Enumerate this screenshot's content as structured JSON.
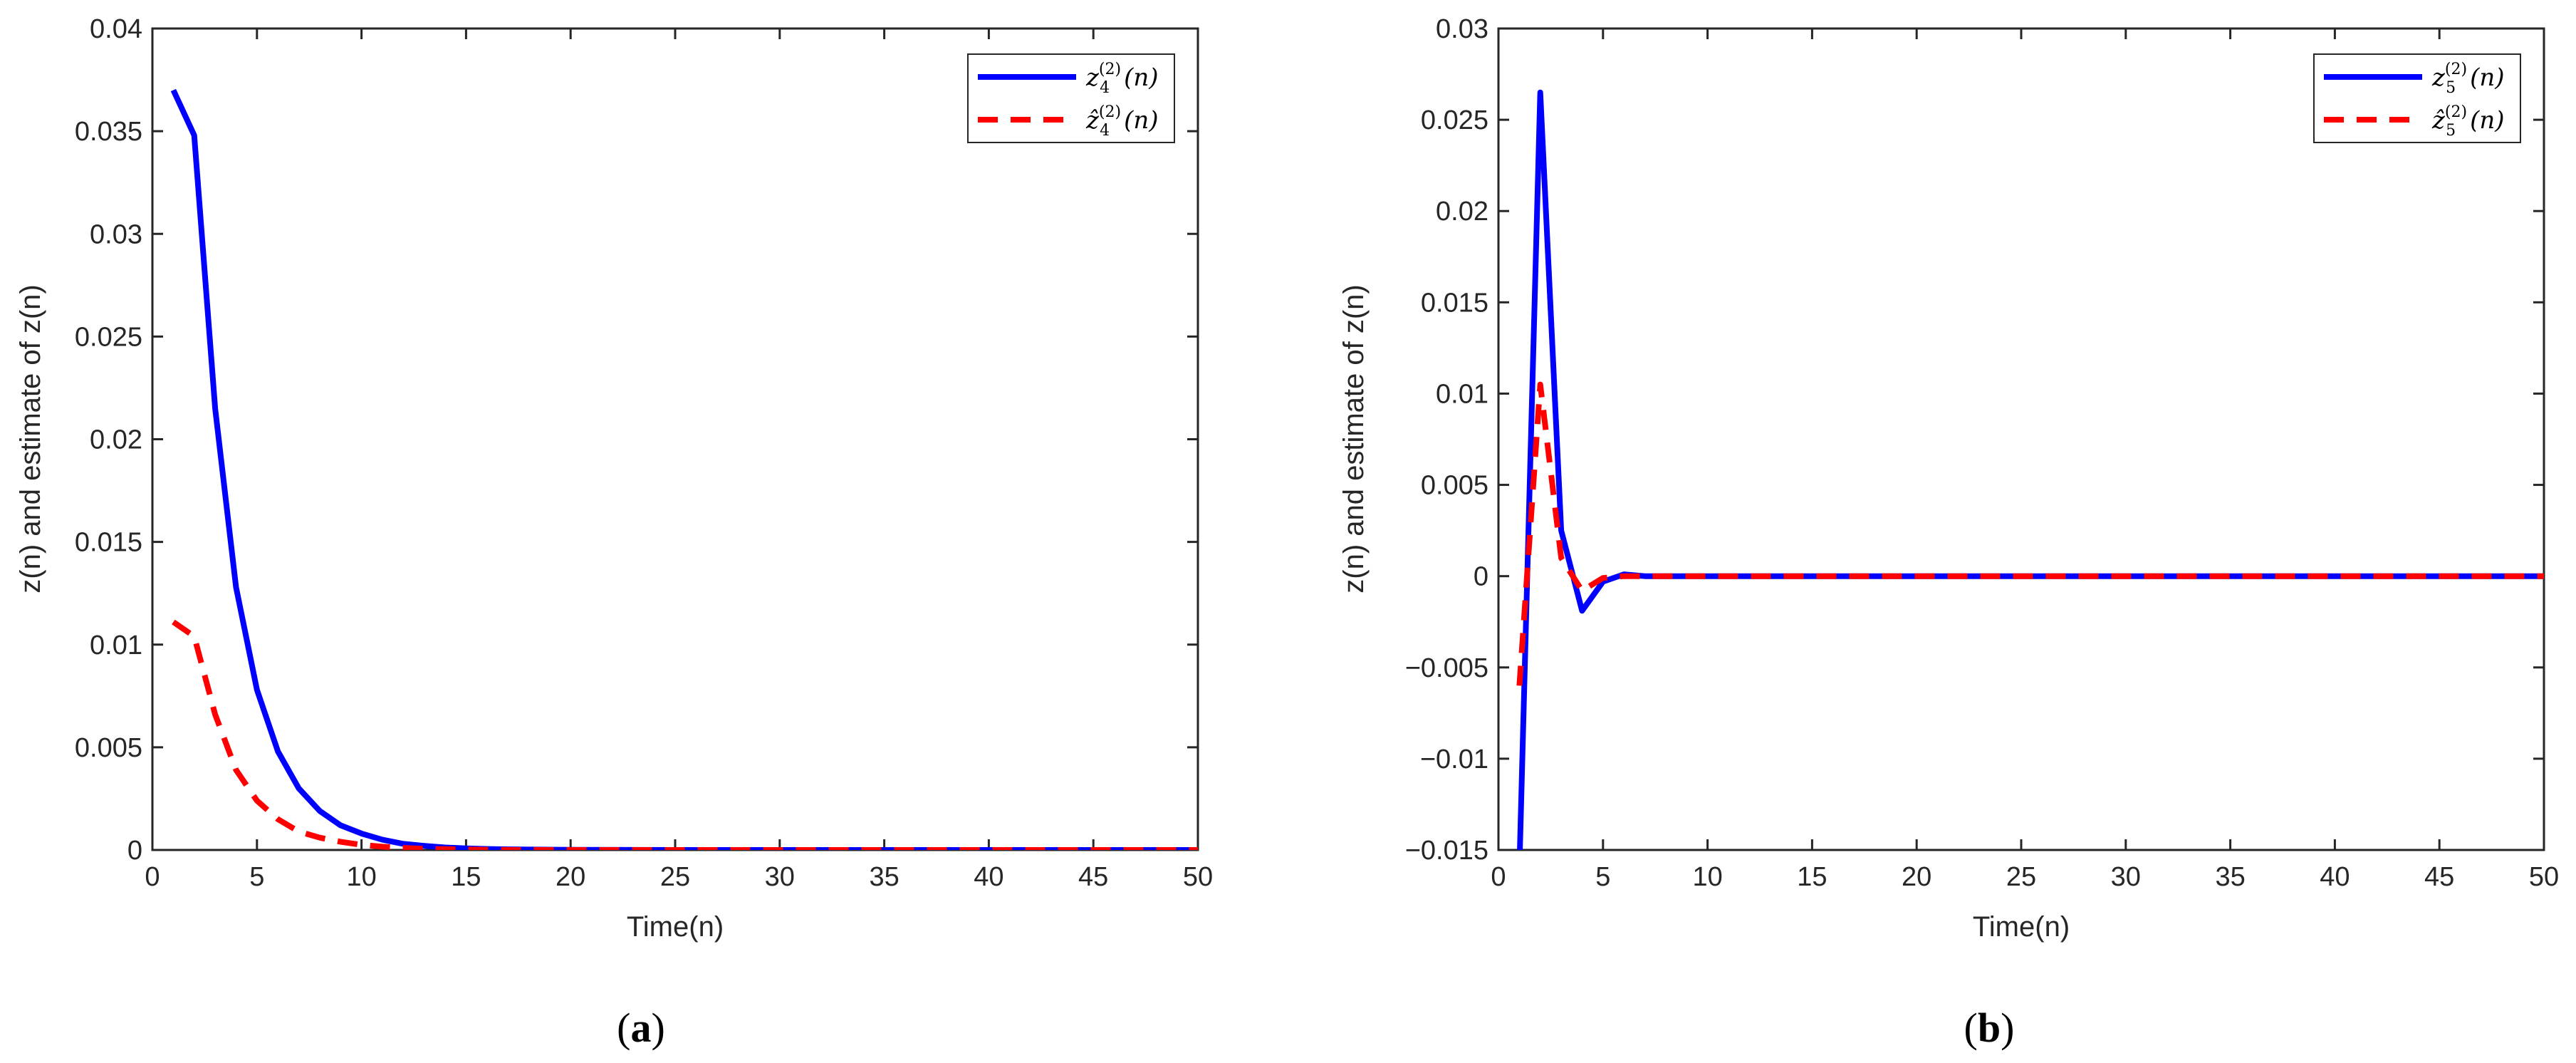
{
  "chart_data": [
    {
      "type": "line",
      "panel_label": {
        "open": "(",
        "letter": "a",
        "close": ")"
      },
      "xlabel": "Time(n)",
      "ylabel": "z(n) and estimate of z(n)",
      "xlim": [
        0,
        50
      ],
      "ylim": [
        0,
        0.04
      ],
      "xticks": [
        0,
        5,
        10,
        15,
        20,
        25,
        30,
        35,
        40,
        45,
        50
      ],
      "yticks": [
        0,
        0.005,
        0.01,
        0.015,
        0.02,
        0.025,
        0.03,
        0.035,
        0.04
      ],
      "xtick_labels": [
        "0",
        "5",
        "10",
        "15",
        "20",
        "25",
        "30",
        "35",
        "40",
        "45",
        "50"
      ],
      "ytick_labels": [
        "0",
        "0.005",
        "0.01",
        "0.015",
        "0.02",
        "0.025",
        "0.03",
        "0.035",
        "0.04"
      ],
      "grid": false,
      "legend_position": "top-right",
      "series": [
        {
          "legend": {
            "base": "z",
            "sub": "4",
            "sup": "(2)",
            "arg": "(n)"
          },
          "color": "#0000ff",
          "style": "solid",
          "x": [
            1,
            2,
            3,
            4,
            5,
            6,
            7,
            8,
            9,
            10,
            11,
            12,
            13,
            14,
            15,
            16,
            17,
            18,
            20,
            25,
            30,
            35,
            40,
            45,
            50
          ],
          "y": [
            0.037,
            0.0348,
            0.0215,
            0.0128,
            0.0078,
            0.0048,
            0.003,
            0.0019,
            0.0012,
            0.0008,
            0.0005,
            0.0003,
            0.0002,
            0.00012,
            8e-05,
            5e-05,
            3e-05,
            2e-05,
            1e-05,
            0,
            0,
            0,
            0,
            0,
            0
          ]
        },
        {
          "legend": {
            "base": "ẑ",
            "sub": "4",
            "sup": "(2)",
            "arg": "(n)"
          },
          "color": "#ff0000",
          "style": "dashed",
          "x": [
            1,
            2,
            3,
            4,
            5,
            6,
            7,
            8,
            9,
            10,
            11,
            12,
            13,
            14,
            15,
            16,
            17,
            18,
            20,
            25,
            30,
            35,
            40,
            45,
            50
          ],
          "y": [
            0.0111,
            0.0104,
            0.0066,
            0.0039,
            0.0024,
            0.0015,
            0.0009,
            0.0006,
            0.0004,
            0.00025,
            0.00016,
            0.0001,
            6e-05,
            4e-05,
            2e-05,
            1e-05,
            0,
            0,
            0,
            0,
            0,
            0,
            0,
            0,
            0
          ]
        }
      ]
    },
    {
      "type": "line",
      "panel_label": {
        "open": "(",
        "letter": "b",
        "close": ")"
      },
      "xlabel": "Time(n)",
      "ylabel": "z(n) and estimate of z(n)",
      "xlim": [
        0,
        50
      ],
      "ylim": [
        -0.015,
        0.03
      ],
      "xticks": [
        0,
        5,
        10,
        15,
        20,
        25,
        30,
        35,
        40,
        45,
        50
      ],
      "yticks": [
        -0.015,
        -0.01,
        -0.005,
        0,
        0.005,
        0.01,
        0.015,
        0.02,
        0.025,
        0.03
      ],
      "xtick_labels": [
        "0",
        "5",
        "10",
        "15",
        "20",
        "25",
        "30",
        "35",
        "40",
        "45",
        "50"
      ],
      "ytick_labels": [
        "−0.015",
        "−0.01",
        "−0.005",
        "0",
        "0.005",
        "0.01",
        "0.015",
        "0.02",
        "0.025",
        "0.03"
      ],
      "grid": false,
      "legend_position": "top-right",
      "series": [
        {
          "legend": {
            "base": "z",
            "sub": "5",
            "sup": "(2)",
            "arg": "(n)"
          },
          "color": "#0000ff",
          "style": "solid",
          "x": [
            1,
            2,
            3,
            4,
            5,
            6,
            7,
            8,
            10,
            15,
            20,
            30,
            40,
            50
          ],
          "y": [
            -0.016,
            0.0265,
            0.0025,
            -0.0019,
            -0.0003,
            0.0001,
            0,
            0,
            0,
            0,
            0,
            0,
            0,
            0
          ]
        },
        {
          "legend": {
            "base": "ẑ",
            "sub": "5",
            "sup": "(2)",
            "arg": "(n)"
          },
          "color": "#ff0000",
          "style": "dashed",
          "x": [
            1,
            2,
            3,
            4,
            5,
            6,
            7,
            8,
            10,
            15,
            20,
            30,
            40,
            50
          ],
          "y": [
            -0.006,
            0.0105,
            0.001,
            -0.0008,
            -0.0001,
            0,
            0,
            0,
            0,
            0,
            0,
            0,
            0,
            0
          ]
        }
      ]
    }
  ]
}
